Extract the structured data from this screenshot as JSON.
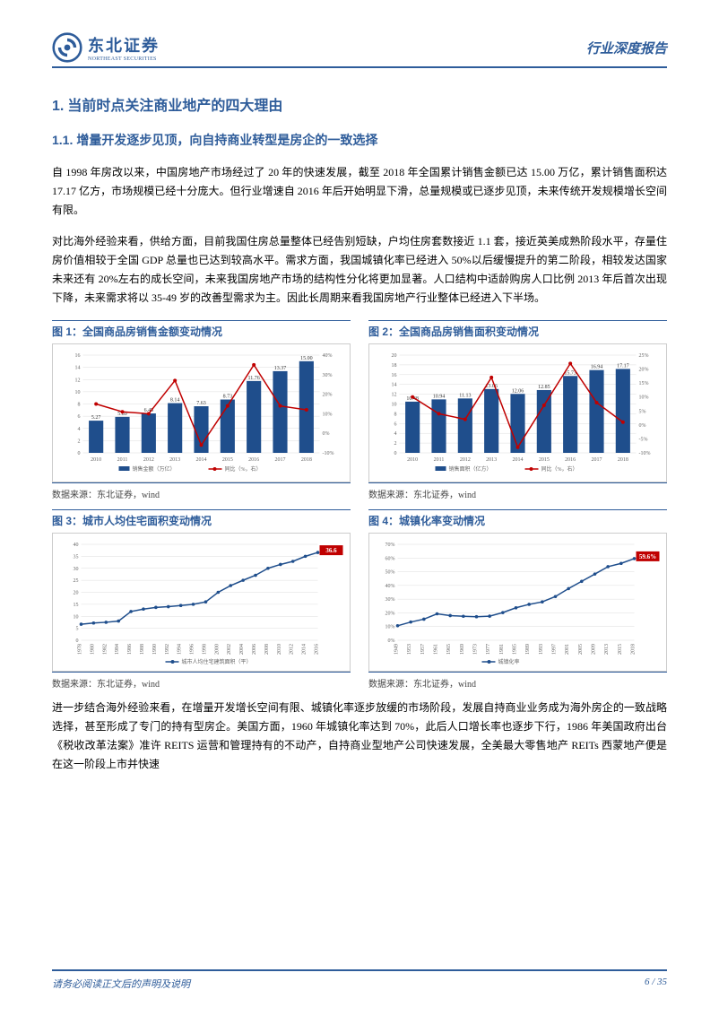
{
  "header": {
    "logo_cn": "东北证券",
    "logo_en": "NORTHEAST SECURITIES",
    "right": "行业深度报告"
  },
  "section": {
    "h1_num": "1.",
    "h1": "当前时点关注商业地产的四大理由",
    "h2_num": "1.1.",
    "h2": "增量开发逐步见顶，向自持商业转型是房企的一致选择",
    "p1": "自 1998 年房改以来，中国房地产市场经过了 20 年的快速发展，截至 2018 年全国累计销售金额已达 15.00 万亿，累计销售面积达 17.17 亿方，市场规模已经十分庞大。但行业增速自 2016 年后开始明显下滑，总量规模或已逐步见顶，未来传统开发规模增长空间有限。",
    "p2": "对比海外经验来看，供给方面，目前我国住房总量整体已经告别短缺，户均住房套数接近 1.1 套，接近英美成熟阶段水平，存量住房价值相较于全国 GDP 总量也已达到较高水平。需求方面，我国城镇化率已经进入 50%以后缓慢提升的第二阶段，相较发达国家未来还有 20%左右的成长空间，未来我国房地产市场的结构性分化将更加显著。人口结构中适龄购房人口比例 2013 年后首次出现下降，未来需求将以 35-49 岁的改善型需求为主。因此长周期来看我国房地产行业整体已经进入下半场。",
    "p3": "进一步结合海外经验来看，在增量开发增长空间有限、城镇化率逐步放缓的市场阶段，发展自持商业业务成为海外房企的一致战略选择，甚至形成了专门的持有型房企。美国方面，1960 年城镇化率达到 70%，此后人口增长率也逐步下行，1986 年美国政府出台《税收改革法案》准许 REITS 运营和管理持有的不动产，自持商业型地产公司快速发展，全美最大零售地产 REITs 西蒙地产便是在这一阶段上市并快速"
  },
  "charts": {
    "c1": {
      "title": "图 1：全国商品房销售金额变动情况",
      "source": "数据来源：东北证券，wind",
      "type": "bar-line",
      "categories": [
        "2010",
        "2011",
        "2012",
        "2013",
        "2014",
        "2015",
        "2016",
        "2017",
        "2018"
      ],
      "bar_values": [
        5.27,
        5.89,
        6.45,
        8.14,
        7.63,
        8.73,
        11.76,
        13.37,
        15.0
      ],
      "bar_labels": [
        "5.27",
        "5.89",
        "6.45",
        "8.14",
        "7.63",
        "8.73",
        "11.76",
        "13.37",
        "15.00"
      ],
      "line_values": [
        15,
        11,
        10,
        27,
        -6,
        14,
        35,
        14,
        12
      ],
      "y1_max": 16,
      "y1_step": 2,
      "y2_min": -10,
      "y2_max": 40,
      "y2_step": 10,
      "bar_color": "#1f4e8c",
      "line_color": "#c00000",
      "legend_bar": "销售金额（万亿）",
      "legend_line": "同比（%，右）",
      "font_size": 6
    },
    "c2": {
      "title": "图 2：全国商品房销售面积变动情况",
      "source": "数据来源：东北证券，wind",
      "type": "bar-line",
      "categories": [
        "2010",
        "2011",
        "2012",
        "2013",
        "2014",
        "2015",
        "2016",
        "2017",
        "2018"
      ],
      "bar_values": [
        10.48,
        10.94,
        11.13,
        13.06,
        12.06,
        12.85,
        15.73,
        16.94,
        17.17
      ],
      "bar_labels": [
        "10.48",
        "10.94",
        "11.13",
        "13.06",
        "12.06",
        "12.85",
        "15.73",
        "16.94",
        "17.17"
      ],
      "line_values": [
        10,
        4,
        2,
        17,
        -8,
        7,
        22,
        8,
        1
      ],
      "y1_max": 20,
      "y1_step": 2,
      "y2_min": -10,
      "y2_max": 25,
      "y2_step": 5,
      "bar_color": "#1f4e8c",
      "line_color": "#c00000",
      "legend_bar": "销售面积（亿方）",
      "legend_line": "同比（%，右）",
      "font_size": 6
    },
    "c3": {
      "title": "图 3：城市人均住宅面积变动情况",
      "source": "数据来源：东北证券，wind",
      "type": "line",
      "categories": [
        "1978",
        "1980",
        "1982",
        "1984",
        "1986",
        "1988",
        "1990",
        "1992",
        "1994",
        "1996",
        "1998",
        "2000",
        "2002",
        "2004",
        "2006",
        "2008",
        "2010",
        "2012",
        "2014",
        "2016"
      ],
      "values": [
        6.7,
        7.2,
        7.5,
        8.0,
        12.0,
        13.0,
        13.7,
        14.0,
        14.5,
        15.0,
        16.0,
        20.0,
        22.8,
        25.0,
        27.1,
        30.0,
        31.6,
        32.9,
        35.0,
        36.6
      ],
      "y_max": 40,
      "y_step": 5,
      "line_color": "#1f4e8c",
      "marker_color": "#1f4e8c",
      "callout": "36.6",
      "callout_bg": "#c00000",
      "legend": "城市人均住宅建筑面积（平）",
      "font_size": 6
    },
    "c4": {
      "title": "图 4：城镇化率变动情况",
      "source": "数据来源：东北证券，wind",
      "type": "line",
      "categories": [
        "1949",
        "1953",
        "1957",
        "1961",
        "1965",
        "1969",
        "1973",
        "1977",
        "1981",
        "1985",
        "1989",
        "1993",
        "1997",
        "2001",
        "2005",
        "2009",
        "2013",
        "2015",
        "2018"
      ],
      "values": [
        10.6,
        13.3,
        15.4,
        19.3,
        18.0,
        17.5,
        17.2,
        17.6,
        20.2,
        23.7,
        26.2,
        28.0,
        31.9,
        37.7,
        43.0,
        48.3,
        53.7,
        56.1,
        59.6
      ],
      "y_max": 70,
      "y_step": 10,
      "line_color": "#1f4e8c",
      "marker_color": "#1f4e8c",
      "callout": "59.6%",
      "callout_bg": "#c00000",
      "legend": "城镇化率",
      "font_size": 6
    }
  },
  "footer": {
    "left": "请务必阅读正文后的声明及说明",
    "page_current": "6",
    "page_sep": " / ",
    "page_total": "35"
  }
}
